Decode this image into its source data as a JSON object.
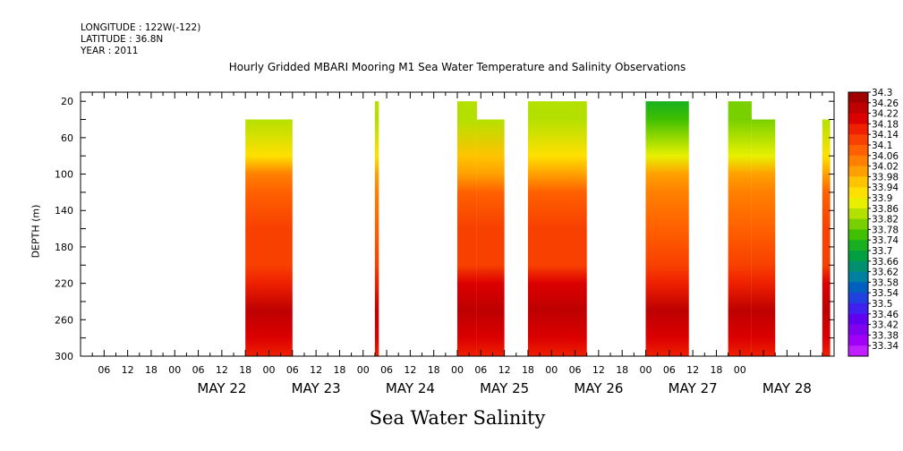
{
  "header": {
    "longitude": "LONGITUDE : 122W(-122)",
    "latitude": "LATITUDE : 36.8N",
    "year": "YEAR : 2011"
  },
  "chart_data": {
    "type": "heatmap",
    "title": "Hourly Gridded MBARI Mooring M1 Sea Water Temperature and Salinity Observations",
    "variable_label": "Sea Water Salinity",
    "ylabel": "DEPTH (m)",
    "x_axis": {
      "start": "May 21 2011 00:00",
      "end": "May 28 2011 23:00",
      "hour_tick_labels": [
        "06",
        "12",
        "18",
        "00",
        "06",
        "12",
        "18",
        "00",
        "06",
        "12",
        "18",
        "00",
        "06",
        "12",
        "18",
        "00",
        "06",
        "12",
        "18",
        "00",
        "06",
        "12",
        "18",
        "00",
        "06",
        "12",
        "18",
        "00"
      ],
      "day_labels": [
        "MAY 22",
        "MAY 23",
        "MAY 24",
        "MAY 25",
        "MAY 26",
        "MAY 27",
        "MAY 28"
      ]
    },
    "y_axis": {
      "range": [
        10,
        300
      ],
      "inverted": true,
      "tick_labels": [
        "20",
        "60",
        "100",
        "140",
        "180",
        "220",
        "260",
        "300"
      ]
    },
    "data_segments": [
      {
        "start": "May 22 18:00",
        "end": "May 23 06:00",
        "top_depth": 40,
        "profile": [
          33.84,
          33.84,
          33.94,
          34.06,
          34.1,
          34.14,
          34.14,
          34.18,
          34.24,
          34.2,
          34.18
        ]
      },
      {
        "start": "May 24 03:00",
        "end": "May 24 04:00",
        "top_depth": 20,
        "profile": [
          33.86,
          33.86,
          33.94,
          34.02,
          34.06,
          34.1,
          34.14,
          34.18,
          34.24,
          34.2,
          34.18
        ]
      },
      {
        "start": "May 25 00:00",
        "end": "May 25 05:00",
        "top_depth": 20,
        "profile": [
          33.86,
          33.86,
          33.96,
          34.04,
          34.1,
          34.14,
          34.16,
          34.2,
          34.24,
          34.22,
          34.18
        ]
      },
      {
        "start": "May 25 05:00",
        "end": "May 25 12:00",
        "top_depth": 40,
        "profile": [
          33.86,
          33.86,
          33.96,
          34.04,
          34.1,
          34.14,
          34.16,
          34.2,
          34.24,
          34.22,
          34.18
        ]
      },
      {
        "start": "May 25 18:00",
        "end": "May 26 09:00",
        "top_depth": 20,
        "profile": [
          33.84,
          33.84,
          33.94,
          34.02,
          34.1,
          34.14,
          34.16,
          34.2,
          34.26,
          34.22,
          34.18
        ]
      },
      {
        "start": "May 27 00:00",
        "end": "May 27 11:00",
        "top_depth": 20,
        "profile": [
          33.76,
          33.8,
          33.9,
          34.0,
          34.06,
          34.1,
          34.14,
          34.18,
          34.24,
          34.2,
          34.18
        ]
      },
      {
        "start": "May 27 21:00",
        "end": "May 28 03:00",
        "top_depth": 20,
        "profile": [
          33.82,
          33.82,
          33.9,
          34.02,
          34.08,
          34.12,
          34.14,
          34.18,
          34.24,
          34.2,
          34.18
        ]
      },
      {
        "start": "May 28 03:00",
        "end": "May 28 09:00",
        "top_depth": 40,
        "profile": [
          33.82,
          33.82,
          33.9,
          34.02,
          34.08,
          34.12,
          34.14,
          34.18,
          34.24,
          34.2,
          34.18
        ]
      },
      {
        "start": "May 28 21:00",
        "end": "May 28 23:00",
        "top_depth": 40,
        "profile": [
          33.84,
          33.84,
          33.94,
          34.04,
          34.1,
          34.14,
          34.16,
          34.2,
          34.24,
          34.2,
          34.18
        ]
      }
    ],
    "profile_depths": [
      20,
      40,
      80,
      100,
      120,
      160,
      200,
      220,
      250,
      280,
      300
    ],
    "colorbar": {
      "labels": [
        "34.3",
        "34.26",
        "34.22",
        "34.18",
        "34.14",
        "34.1",
        "34.06",
        "34.02",
        "33.98",
        "33.94",
        "33.9",
        "33.86",
        "33.82",
        "33.78",
        "33.74",
        "33.7",
        "33.66",
        "33.62",
        "33.58",
        "33.54",
        "33.5",
        "33.46",
        "33.42",
        "33.38",
        "33.34"
      ],
      "values": [
        34.3,
        34.26,
        34.22,
        34.18,
        34.14,
        34.1,
        34.06,
        34.02,
        33.98,
        33.94,
        33.9,
        33.86,
        33.82,
        33.78,
        33.74,
        33.7,
        33.66,
        33.62,
        33.58,
        33.54,
        33.5,
        33.46,
        33.42,
        33.38,
        33.34
      ],
      "colors": [
        "#a00000",
        "#be0000",
        "#dc0000",
        "#ee2000",
        "#f84000",
        "#ff6000",
        "#ff8000",
        "#ffa000",
        "#ffc400",
        "#ffe000",
        "#e8f000",
        "#b4e000",
        "#78d000",
        "#40c000",
        "#18b020",
        "#00a040",
        "#009070",
        "#0080a0",
        "#0060c0",
        "#2040e0",
        "#4020f0",
        "#6000f0",
        "#8000f0",
        "#a000f8",
        "#c020ff"
      ]
    }
  }
}
